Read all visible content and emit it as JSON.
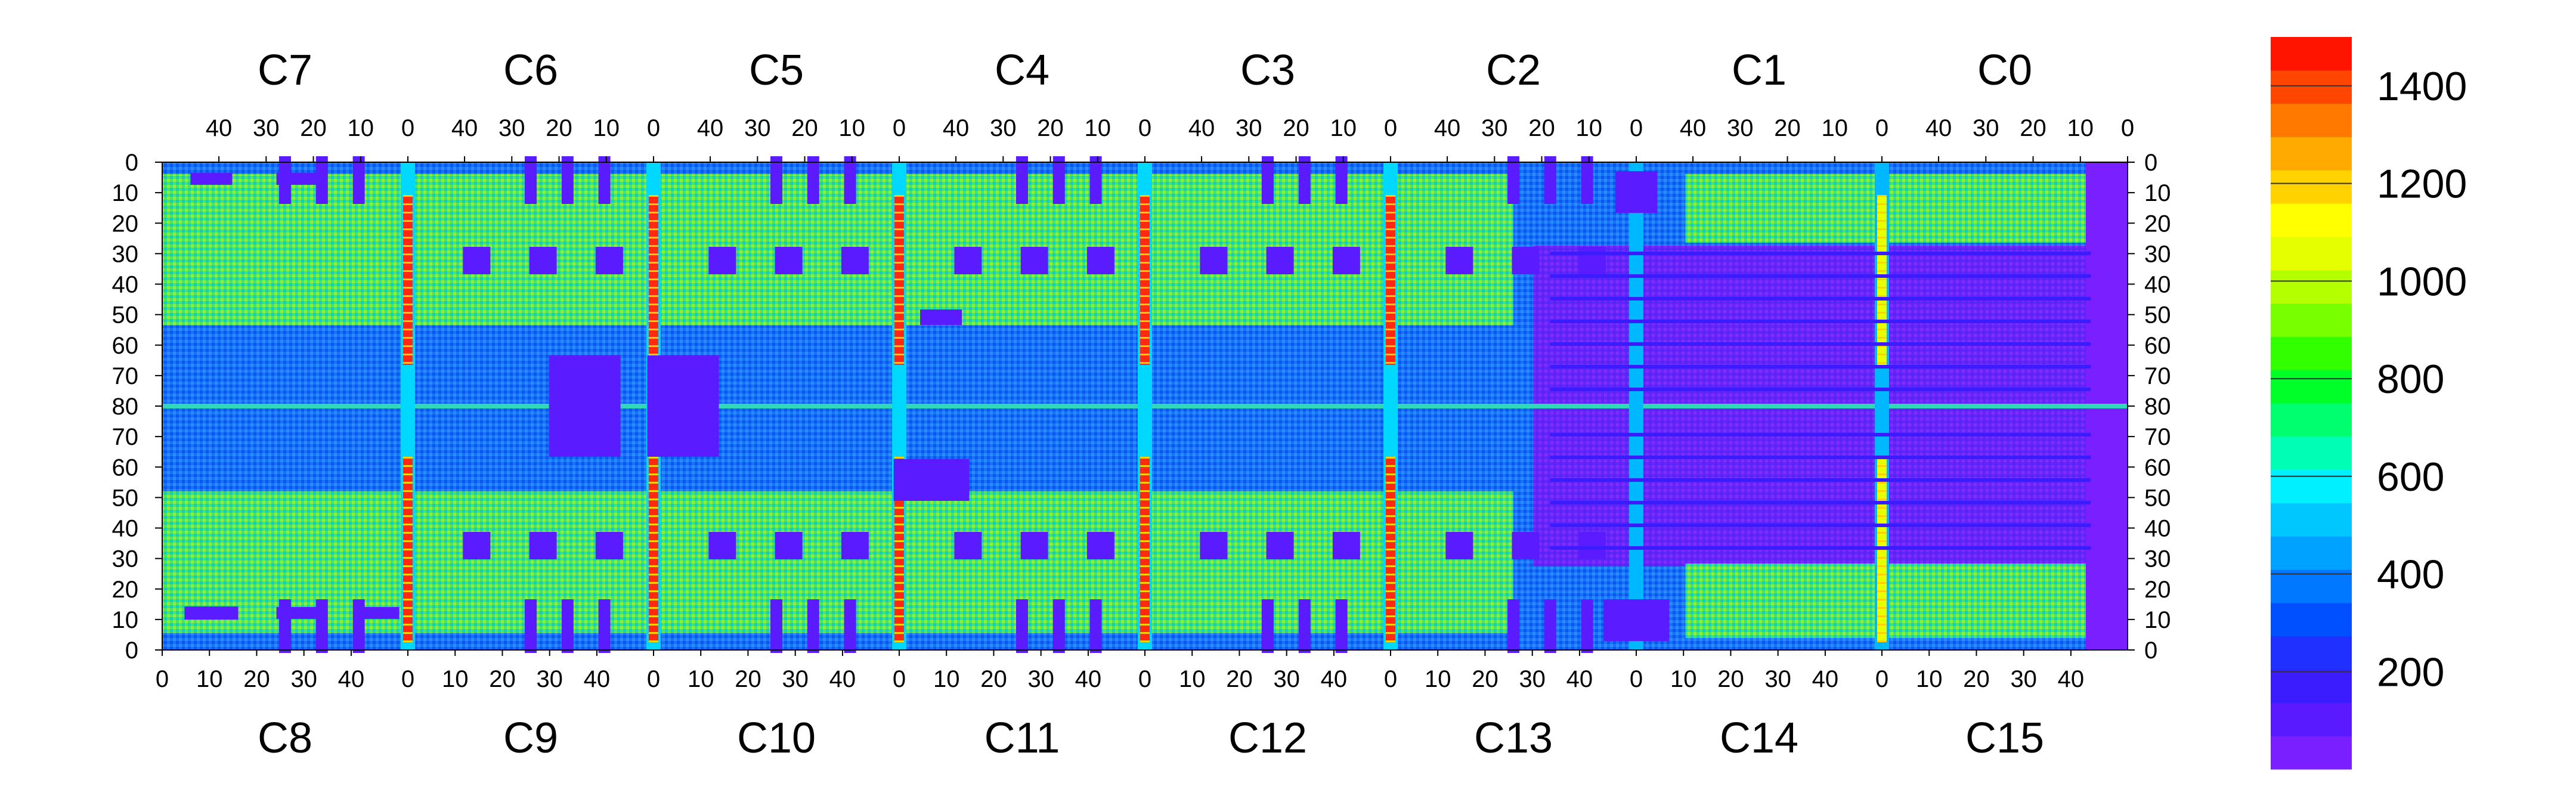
{
  "chart_data": {
    "type": "heatmap",
    "title": "",
    "top_chip_labels": [
      "C7",
      "C6",
      "C5",
      "C4",
      "C3",
      "C2",
      "C1",
      "C0"
    ],
    "bottom_chip_labels": [
      "C8",
      "C9",
      "C10",
      "C11",
      "C12",
      "C13",
      "C14",
      "C15"
    ],
    "top_column_ticks": [
      "40",
      "30",
      "20",
      "10",
      "0"
    ],
    "top_right_end_tick": "0",
    "bottom_column_ticks": [
      "0",
      "10",
      "20",
      "30",
      "40"
    ],
    "row_ticks": [
      "0",
      "10",
      "20",
      "30",
      "40",
      "50",
      "60",
      "70",
      "80",
      "70",
      "60",
      "50",
      "40",
      "30",
      "20",
      "10",
      "0"
    ],
    "x_range_per_chip": [
      0,
      52
    ],
    "y_range_per_half": [
      0,
      80
    ],
    "color_scale": {
      "min": 0,
      "max": 1500,
      "tick_values": [
        200,
        400,
        600,
        800,
        1000,
        1200,
        1400
      ],
      "tick_labels": [
        "200",
        "400",
        "600",
        "800",
        "1000",
        "1200",
        "1400"
      ],
      "colors": [
        "#7a1fff",
        "#5a1aff",
        "#3a1cff",
        "#1f30ff",
        "#0050ff",
        "#0078ff",
        "#00a2ff",
        "#00c8ff",
        "#00f0ff",
        "#00ffb4",
        "#00ff6e",
        "#00ff28",
        "#32ff00",
        "#78ff00",
        "#b4ff00",
        "#e6ff00",
        "#ffff00",
        "#ffd200",
        "#ffaa00",
        "#ff7800",
        "#ff4600",
        "#ff1400"
      ]
    },
    "grid": false,
    "legend_position": "right"
  }
}
